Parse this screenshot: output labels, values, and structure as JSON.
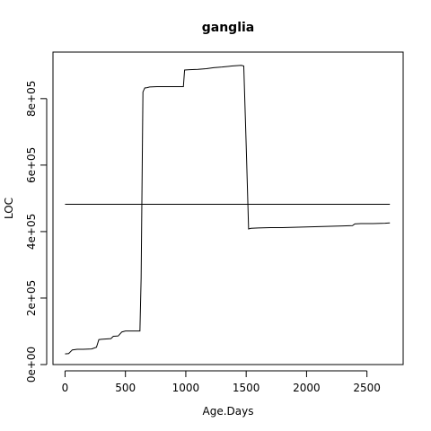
{
  "chart_data": {
    "type": "line",
    "title": "ganglia",
    "xlabel": "Age.Days",
    "ylabel": "LOC",
    "xlim": [
      -100,
      2800
    ],
    "ylim": [
      0,
      940000
    ],
    "x_ticks": [
      0,
      500,
      1000,
      1500,
      2000,
      2500
    ],
    "x_tick_labels": [
      "0",
      "500",
      "1000",
      "1500",
      "2000",
      "2500"
    ],
    "y_ticks": [
      0,
      200000,
      400000,
      600000,
      800000
    ],
    "y_tick_labels": [
      "0e+00",
      "2e+05",
      "4e+05",
      "6e+05",
      "8e+05"
    ],
    "grid": false,
    "legend": "none",
    "series": [
      {
        "values_x": [
          0,
          30,
          60,
          100,
          150,
          220,
          260,
          280,
          300,
          380,
          400,
          440,
          470,
          500,
          560,
          620,
          630,
          645,
          660,
          680,
          700,
          760,
          830,
          900,
          980,
          990,
          1030,
          1100,
          1170,
          1230,
          1300,
          1380,
          1460,
          1480,
          1500,
          1520,
          1540,
          1600,
          1700,
          1800,
          1900,
          2000,
          2100,
          2200,
          2300,
          2380,
          2400,
          2450,
          2550,
          2650,
          2690
        ],
        "values_y": [
          32000,
          33000,
          44000,
          46000,
          46000,
          47000,
          52000,
          75000,
          76000,
          78000,
          85000,
          86000,
          98000,
          101000,
          101000,
          101000,
          260000,
          820000,
          832000,
          833000,
          835000,
          836000,
          836000,
          836000,
          836000,
          886000,
          887000,
          888000,
          890000,
          893000,
          895000,
          898000,
          900000,
          898000,
          660000,
          408000,
          410000,
          411000,
          412000,
          412000,
          413000,
          414000,
          415000,
          416000,
          417000,
          418000,
          423000,
          424000,
          424000,
          425000,
          426000
        ]
      }
    ],
    "reference_line": {
      "y": 482000,
      "x_range": [
        0,
        2690
      ]
    }
  }
}
